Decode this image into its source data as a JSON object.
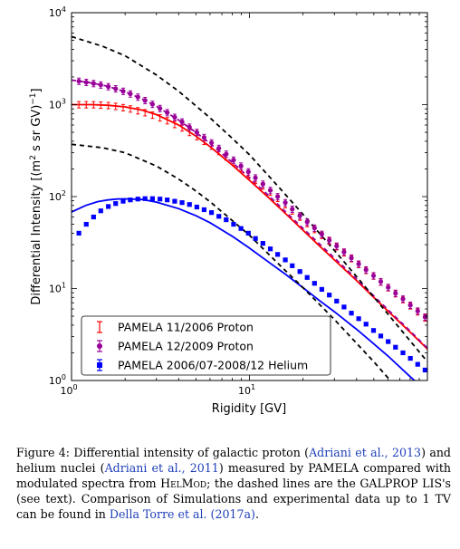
{
  "chart_data": {
    "type": "scatter",
    "xlabel": "Rigidity [GV]",
    "ylabel_main": "Differential Intensity [(m",
    "ylabel_sup1": "2",
    "ylabel_mid": " s sr GV)",
    "ylabel_sup2": "−1",
    "ylabel_end": "]",
    "x_scale": "log",
    "y_scale": "log",
    "xlim": [
      1,
      100
    ],
    "ylim": [
      1,
      10000
    ],
    "x_ticks": [
      {
        "base": "10",
        "exp": "0",
        "value": 1
      },
      {
        "base": "10",
        "exp": "1",
        "value": 10
      }
    ],
    "y_ticks": [
      {
        "base": "10",
        "exp": "0",
        "value": 1
      },
      {
        "base": "10",
        "exp": "1",
        "value": 10
      },
      {
        "base": "10",
        "exp": "2",
        "value": 100
      },
      {
        "base": "10",
        "exp": "3",
        "value": 1000
      },
      {
        "base": "10",
        "exp": "4",
        "value": 10000
      }
    ],
    "legend_position": "lower-left",
    "series": [
      {
        "name": "PAMELA 11/2006 Proton",
        "color": "#ff0000",
        "marker": "none",
        "x": [
          1.1,
          1.21,
          1.33,
          1.46,
          1.61,
          1.77,
          1.95,
          2.14,
          2.36,
          2.59,
          2.85,
          3.14,
          3.45,
          3.8,
          4.18,
          4.6,
          5.06,
          5.56,
          6.12,
          6.73,
          7.4,
          8.14,
          8.96,
          9.86,
          10.8,
          11.9,
          13.1,
          14.4,
          15.9,
          17.4,
          19.2,
          21.1,
          23.2,
          25.5,
          28.1,
          30.9,
          34.0,
          37.4,
          41.1,
          45.2,
          49.8,
          54.7,
          60.2,
          66.2,
          72.9,
          80.2,
          88.2,
          97.0
        ],
        "values": [
          1000,
          1000,
          1000,
          990,
          980,
          960,
          930,
          900,
          860,
          820,
          770,
          720,
          670,
          610,
          560,
          500,
          450,
          400,
          355,
          310,
          270,
          235,
          205,
          178,
          152,
          131,
          112,
          96,
          82,
          70,
          60,
          51,
          44,
          38,
          33,
          28.5,
          24.5,
          21.2,
          18.3,
          15.8,
          13.7,
          11.8,
          10.2,
          8.8,
          7.6,
          6.5,
          5.6,
          4.8
        ]
      },
      {
        "name": "PAMELA 12/2009 Proton",
        "color": "#990099",
        "marker": "circle",
        "x": [
          1.1,
          1.21,
          1.33,
          1.46,
          1.61,
          1.77,
          1.95,
          2.14,
          2.36,
          2.59,
          2.85,
          3.14,
          3.45,
          3.8,
          4.18,
          4.6,
          5.06,
          5.56,
          6.12,
          6.73,
          7.4,
          8.14,
          8.96,
          9.86,
          10.8,
          11.9,
          13.1,
          14.4,
          15.9,
          17.4,
          19.2,
          21.1,
          23.2,
          25.5,
          28.1,
          30.9,
          34.0,
          37.4,
          41.1,
          45.2,
          49.8,
          54.7,
          60.2,
          66.2,
          72.9,
          80.2,
          88.2,
          97.0
        ],
        "values": [
          1800,
          1750,
          1700,
          1640,
          1570,
          1490,
          1400,
          1310,
          1210,
          1110,
          1010,
          910,
          820,
          730,
          650,
          570,
          500,
          440,
          385,
          335,
          290,
          250,
          215,
          186,
          160,
          137,
          117,
          100,
          86,
          73,
          62,
          53,
          45.5,
          39,
          33.5,
          29,
          25,
          21.5,
          18.5,
          16,
          13.8,
          11.9,
          10.3,
          8.9,
          7.7,
          6.6,
          5.7,
          4.9
        ]
      },
      {
        "name": "PAMELA 2006/07-2008/12 Helium",
        "color": "#0000ff",
        "marker": "square",
        "x": [
          1.1,
          1.21,
          1.33,
          1.46,
          1.61,
          1.77,
          1.95,
          2.14,
          2.36,
          2.59,
          2.85,
          3.14,
          3.45,
          3.8,
          4.18,
          4.6,
          5.06,
          5.56,
          6.12,
          6.73,
          7.4,
          8.14,
          8.96,
          9.86,
          10.8,
          11.9,
          13.1,
          14.4,
          15.9,
          17.4,
          19.2,
          21.1,
          23.2,
          25.5,
          28.1,
          30.9,
          34.0,
          37.4,
          41.1,
          45.2,
          49.8,
          54.7,
          60.2,
          66.2,
          72.9,
          80.2,
          88.2,
          97.0
        ],
        "values": [
          40,
          50,
          60,
          70,
          78,
          84,
          89,
          92,
          94,
          95,
          95,
          94,
          92,
          89,
          86,
          82,
          77,
          72,
          67,
          61,
          56,
          50,
          45,
          40,
          35,
          31,
          27,
          23.5,
          20.5,
          17.7,
          15.3,
          13.2,
          11.4,
          9.8,
          8.5,
          7.3,
          6.3,
          5.4,
          4.7,
          4.1,
          3.5,
          3.05,
          2.65,
          2.3,
          2.0,
          1.74,
          1.5,
          1.3
        ]
      }
    ],
    "model_curves": [
      {
        "name": "proton-2006-model",
        "color": "#ff0000",
        "style": "solid",
        "x": [
          1.0,
          1.3,
          1.6,
          2.0,
          2.5,
          3.0,
          4.0,
          5.0,
          6.0,
          8.0,
          10,
          13,
          16,
          20,
          25,
          30,
          40,
          50,
          60,
          80,
          100
        ],
        "values": [
          1000,
          1000,
          985,
          945,
          870,
          780,
          600,
          455,
          350,
          220,
          150,
          95,
          65,
          43,
          28.5,
          20.5,
          12.2,
          8.0,
          5.7,
          3.35,
          2.2
        ]
      },
      {
        "name": "proton-2009-model",
        "color": "#990099",
        "style": "dashed",
        "x": [
          1.0,
          1.3,
          1.6,
          2.0,
          2.5,
          3.0,
          4.0,
          5.0,
          6.0,
          8.0,
          10,
          13,
          16,
          20,
          25,
          30,
          40,
          50,
          60,
          80,
          100
        ],
        "values": [
          1850,
          1720,
          1580,
          1380,
          1150,
          960,
          680,
          500,
          380,
          235,
          160,
          100,
          68,
          45,
          30,
          21.5,
          12.7,
          8.3,
          5.9,
          3.45,
          2.25
        ]
      },
      {
        "name": "helium-model",
        "color": "#0000ff",
        "style": "solid",
        "x": [
          1.0,
          1.2,
          1.4,
          1.6,
          1.8,
          2.0,
          2.5,
          3.0,
          4.0,
          5.0,
          6.0,
          8.0,
          10,
          13,
          16,
          20,
          25,
          30,
          40,
          50,
          60,
          80,
          100
        ],
        "values": [
          68,
          80,
          88,
          92,
          94,
          94.5,
          93,
          87,
          74,
          62,
          52,
          37,
          27.5,
          19,
          14.2,
          10.2,
          7.3,
          5.6,
          3.6,
          2.5,
          1.85,
          1.1,
          0.75
        ]
      },
      {
        "name": "proton-lis",
        "color": "#000000",
        "style": "dashed",
        "x": [
          1.0,
          1.5,
          2.0,
          3.0,
          4.0,
          5.0,
          6.0,
          8.0,
          10,
          15,
          20,
          30,
          50,
          100
        ],
        "values": [
          5500,
          4300,
          3400,
          2100,
          1400,
          970,
          720,
          430,
          285,
          120,
          64,
          26,
          8.1,
          1.6
        ]
      },
      {
        "name": "helium-lis",
        "color": "#000000",
        "style": "dashed",
        "x": [
          1.0,
          1.5,
          2.0,
          3.0,
          4.0,
          5.0,
          6.0,
          8.0,
          10,
          15,
          20,
          30,
          50,
          100
        ],
        "values": [
          370,
          340,
          300,
          215,
          155,
          115,
          88,
          55,
          38,
          17.5,
          10.2,
          4.6,
          1.6,
          0.35
        ]
      }
    ]
  },
  "caption": {
    "prefix": "Figure 4:  Differential intensity of galactic proton (",
    "cite1": "Adriani et al., 2013",
    "mid1": ") and helium nuclei (",
    "cite2": "Adriani et al., 2011",
    "mid2": ") measured by PAMELA compared with modulated spectra from ",
    "helmod": "HelMod",
    "mid3": "; the dashed lines are the GALPROP LIS's (see text). Comparison of Simulations and experimental data up to 1 TV can be found in ",
    "cite3": "Della Torre et al. (2017a)",
    "suffix": "."
  }
}
